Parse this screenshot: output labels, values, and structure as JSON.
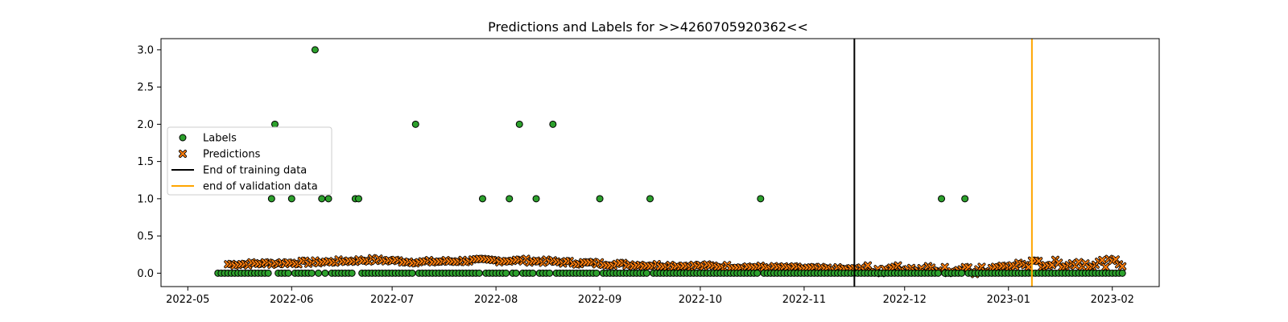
{
  "chart_data": {
    "type": "scatter",
    "title": "Predictions and Labels for >>4260705920362<<",
    "xlabel": "",
    "ylabel": "",
    "x_range": [
      "2022-04-23",
      "2023-02-15"
    ],
    "ylim": [
      -0.18,
      3.15
    ],
    "x_ticks": [
      "2022-05",
      "2022-06",
      "2022-07",
      "2022-08",
      "2022-09",
      "2022-10",
      "2022-11",
      "2022-12",
      "2023-01",
      "2023-02"
    ],
    "x_tick_labels": [
      "2022-05",
      "2022-06",
      "2022-07",
      "2022-08",
      "2022-09",
      "2022-10",
      "2022-11",
      "2022-12",
      "2023-01",
      "2023-02"
    ],
    "y_ticks": [
      0.0,
      0.5,
      1.0,
      1.5,
      2.0,
      2.5,
      3.0
    ],
    "y_tick_labels": [
      "0.0",
      "0.5",
      "1.0",
      "1.5",
      "2.0",
      "2.5",
      "3.0"
    ],
    "grid": false,
    "legend_position": "center-left",
    "labels_start": "2022-05-10",
    "labels_end": "2023-02-04",
    "label_nonzero": [
      {
        "x": "2022-05-26",
        "y": 1
      },
      {
        "x": "2022-05-27",
        "y": 2
      },
      {
        "x": "2022-06-01",
        "y": 1
      },
      {
        "x": "2022-06-08",
        "y": 3
      },
      {
        "x": "2022-06-10",
        "y": 1
      },
      {
        "x": "2022-06-12",
        "y": 1
      },
      {
        "x": "2022-06-20",
        "y": 1
      },
      {
        "x": "2022-06-21",
        "y": 1
      },
      {
        "x": "2022-07-08",
        "y": 2
      },
      {
        "x": "2022-07-28",
        "y": 1
      },
      {
        "x": "2022-08-05",
        "y": 1
      },
      {
        "x": "2022-08-08",
        "y": 2
      },
      {
        "x": "2022-08-13",
        "y": 1
      },
      {
        "x": "2022-08-18",
        "y": 2
      },
      {
        "x": "2022-09-01",
        "y": 1
      },
      {
        "x": "2022-09-16",
        "y": 1
      },
      {
        "x": "2022-10-19",
        "y": 1
      },
      {
        "x": "2022-12-12",
        "y": 1
      },
      {
        "x": "2022-12-19",
        "y": 1
      }
    ],
    "predictions_start": "2022-05-13",
    "predictions_end": "2023-02-04",
    "prediction_trend": [
      {
        "x": "2022-05-13",
        "y": 0.12
      },
      {
        "x": "2022-06-10",
        "y": 0.15
      },
      {
        "x": "2022-06-25",
        "y": 0.18
      },
      {
        "x": "2022-07-10",
        "y": 0.15
      },
      {
        "x": "2022-07-25",
        "y": 0.17
      },
      {
        "x": "2022-08-10",
        "y": 0.17
      },
      {
        "x": "2022-08-25",
        "y": 0.14
      },
      {
        "x": "2022-09-15",
        "y": 0.11
      },
      {
        "x": "2022-10-10",
        "y": 0.09
      },
      {
        "x": "2022-11-05",
        "y": 0.06
      },
      {
        "x": "2022-11-20",
        "y": 0.05
      },
      {
        "x": "2022-12-10",
        "y": 0.07
      },
      {
        "x": "2022-12-22",
        "y": 0.02
      },
      {
        "x": "2023-01-05",
        "y": 0.12
      },
      {
        "x": "2023-01-20",
        "y": 0.13
      },
      {
        "x": "2023-02-04",
        "y": 0.14
      }
    ],
    "vlines": [
      {
        "name": "End of training data",
        "x": "2022-11-16",
        "color": "#000000"
      },
      {
        "name": "end of validation data",
        "x": "2023-01-08",
        "color": "#ffa500"
      }
    ],
    "series": [
      {
        "name": "Labels",
        "marker": "circle",
        "color": "#2ca02c"
      },
      {
        "name": "Predictions",
        "marker": "x",
        "color": "#ff7f0e"
      }
    ],
    "legend": [
      "Labels",
      "Predictions",
      "End of training data",
      "end of validation data"
    ]
  }
}
